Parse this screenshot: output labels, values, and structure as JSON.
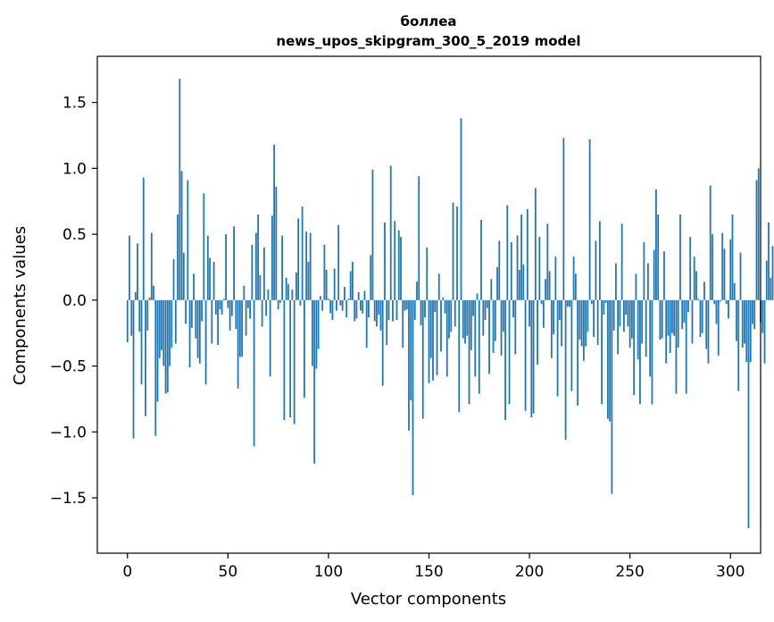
{
  "chart_data": {
    "type": "bar",
    "title_line1": "боллеа",
    "title_line2": "news_upos_skipgram_300_5_2019 model",
    "xlabel": "Vector components",
    "ylabel": "Components values",
    "xlim": [
      -15,
      315
    ],
    "ylim": [
      -1.92,
      1.85
    ],
    "x_ticks": [
      0,
      50,
      100,
      150,
      200,
      250,
      300
    ],
    "x_tick_labels": [
      "0",
      "50",
      "100",
      "150",
      "200",
      "250",
      "300"
    ],
    "y_ticks": [
      -1.5,
      -1.0,
      -0.5,
      0.0,
      0.5,
      1.0,
      1.5
    ],
    "y_tick_labels": [
      "−1.5",
      "−1.0",
      "−0.5",
      "0.0",
      "0.5",
      "1.0",
      "1.5"
    ],
    "bar_color": "#1f77b4",
    "values": [
      -0.32,
      0.49,
      -0.27,
      -1.05,
      0.06,
      0.43,
      -0.24,
      -0.64,
      0.93,
      -0.88,
      -0.23,
      0.02,
      0.51,
      0.11,
      -1.03,
      -0.77,
      -0.44,
      -0.38,
      -0.5,
      -0.71,
      -0.7,
      -0.5,
      -0.36,
      0.31,
      -0.33,
      0.65,
      1.68,
      0.98,
      0.36,
      -0.18,
      0.91,
      -0.51,
      -0.21,
      0.2,
      -0.29,
      -0.44,
      -0.48,
      -0.16,
      0.81,
      -0.64,
      0.49,
      0.32,
      -0.33,
      0.29,
      -0.11,
      -0.34,
      -0.07,
      -0.11,
      0.01,
      0.5,
      -0.06,
      -0.23,
      -0.12,
      0.56,
      -0.22,
      -0.67,
      -0.43,
      -0.43,
      0.11,
      -0.27,
      -0.06,
      -0.14,
      0.42,
      -1.11,
      0.51,
      0.65,
      0.19,
      -0.2,
      0.4,
      -0.12,
      0.08,
      -0.58,
      0.64,
      1.18,
      0.86,
      -0.07,
      -0.02,
      0.49,
      -0.91,
      0.17,
      0.12,
      -0.89,
      0.08,
      -0.94,
      0.21,
      0.62,
      -0.04,
      0.71,
      -0.74,
      0.52,
      0.29,
      0.51,
      -0.5,
      -1.24,
      -0.52,
      -0.37,
      0.03,
      -0.08,
      0.42,
      0.23,
      0.01,
      -0.1,
      -0.15,
      0.24,
      -0.08,
      0.57,
      -0.04,
      -0.08,
      0.1,
      -0.13,
      0.01,
      0.22,
      0.29,
      -0.16,
      -0.14,
      0.06,
      -0.08,
      -0.1,
      0.07,
      -0.36,
      -0.13,
      0.34,
      0.99,
      -0.16,
      -0.2,
      -0.11,
      -0.23,
      -0.65,
      0.59,
      -0.34,
      -0.15,
      1.02,
      -0.16,
      0.6,
      -0.15,
      0.53,
      0.48,
      -0.36,
      -0.08,
      -0.07,
      -0.99,
      -0.76,
      -1.48,
      -0.15,
      0.14,
      0.94,
      -0.19,
      -0.9,
      -0.13,
      0.4,
      -0.63,
      -0.44,
      -0.61,
      -0.09,
      -0.57,
      0.2,
      -0.39,
      0.02,
      -0.1,
      -0.58,
      -0.29,
      -0.24,
      0.74,
      -0.2,
      0.71,
      -0.85,
      1.38,
      -0.29,
      -0.33,
      -0.27,
      -0.79,
      -0.38,
      -0.12,
      -0.58,
      0.05,
      -0.71,
      0.61,
      -0.27,
      -0.15,
      -0.06,
      -0.56,
      0.16,
      -0.4,
      -0.31,
      0.25,
      0.45,
      -0.42,
      -0.24,
      -0.91,
      0.72,
      -0.79,
      0.44,
      -0.13,
      -0.41,
      0.49,
      0.23,
      0.65,
      0.27,
      -0.84,
      0.69,
      -0.2,
      -0.89,
      -0.86,
      0.85,
      -0.49,
      0.48,
      -0.03,
      -0.21,
      0.16,
      0.58,
      0.22,
      -0.44,
      -0.26,
      0.33,
      -0.73,
      -0.15,
      -0.35,
      1.23,
      -1.06,
      -0.05,
      -0.05,
      -0.69,
      0.33,
      0.2,
      -0.8,
      -0.3,
      -0.35,
      -0.46,
      -0.35,
      -0.24,
      1.22,
      -0.03,
      -0.28,
      0.45,
      -0.34,
      0.6,
      -0.79,
      -0.11,
      -0.02,
      -0.9,
      -0.92,
      -1.47,
      -0.23,
      0.28,
      -0.41,
      -0.2,
      0.58,
      -0.24,
      -0.11,
      -0.2,
      -0.36,
      -0.29,
      -0.72,
      0.2,
      -0.45,
      -0.79,
      -0.33,
      0.44,
      -0.43,
      0.28,
      -0.58,
      -0.79,
      0.38,
      0.84,
      0.65,
      -0.3,
      -0.29,
      0.37,
      -0.48,
      -0.27,
      -0.4,
      -0.25,
      -0.27,
      -0.71,
      -0.36,
      0.65,
      -0.22,
      -0.17,
      -0.71,
      -0.09,
      0.48,
      -0.33,
      0.33,
      0.22,
      0.01,
      -0.28,
      -0.25,
      0.14,
      -0.37,
      -0.48,
      0.87,
      0.5,
      -0.03,
      -0.18,
      -0.42,
      -0.01,
      0.51,
      0.39,
      -0.03,
      -0.14,
      0.46,
      0.65,
      0.13,
      -0.31,
      -0.69,
      0.36,
      -0.36,
      -0.33,
      -0.47,
      -1.73,
      -0.47,
      -0.18,
      -0.22,
      0.91,
      1.0,
      -0.17,
      -0.25,
      -0.48,
      0.3,
      0.59,
      0.17,
      0.41
    ]
  }
}
